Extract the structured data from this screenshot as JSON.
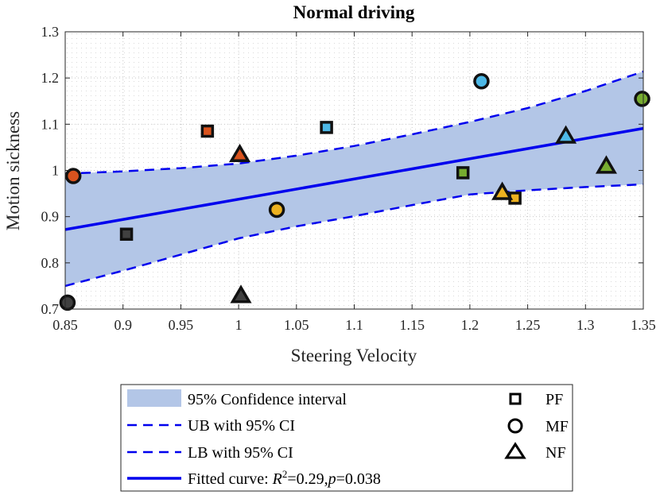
{
  "chart_data": {
    "type": "scatter",
    "title": "Normal driving",
    "xlabel": "Steering Velocity",
    "ylabel": "Motion sickness",
    "xlim": [
      0.85,
      1.35
    ],
    "ylim": [
      0.7,
      1.3
    ],
    "xticks": [
      "0.85",
      "0.9",
      "0.95",
      "1",
      "1.05",
      "1.1",
      "1.15",
      "1.2",
      "1.25",
      "1.3",
      "1.35"
    ],
    "yticks": [
      "0.7",
      "0.8",
      "0.9",
      "1",
      "1.1",
      "1.2",
      "1.3"
    ],
    "grid": true,
    "colors": {
      "band": "#b3c6e7",
      "line": "#0000ee",
      "marker_edge": "#111111"
    },
    "points": [
      {
        "group": "PF",
        "x": 0.903,
        "y": 0.862,
        "color": "#404040"
      },
      {
        "group": "PF",
        "x": 0.973,
        "y": 1.085,
        "color": "#d9531e"
      },
      {
        "group": "PF",
        "x": 1.076,
        "y": 1.093,
        "color": "#4db8e6"
      },
      {
        "group": "PF",
        "x": 1.194,
        "y": 0.995,
        "color": "#77ac30"
      },
      {
        "group": "PF",
        "x": 1.239,
        "y": 0.94,
        "color": "#edb120"
      },
      {
        "group": "MF",
        "x": 0.852,
        "y": 0.714,
        "color": "#404040"
      },
      {
        "group": "MF",
        "x": 0.857,
        "y": 0.988,
        "color": "#d9531e"
      },
      {
        "group": "MF",
        "x": 1.033,
        "y": 0.915,
        "color": "#edb120"
      },
      {
        "group": "MF",
        "x": 1.21,
        "y": 1.193,
        "color": "#4db8e6"
      },
      {
        "group": "MF",
        "x": 1.349,
        "y": 1.155,
        "color": "#77ac30"
      },
      {
        "group": "NF",
        "x": 1.001,
        "y": 1.033,
        "color": "#d9531e"
      },
      {
        "group": "NF",
        "x": 1.002,
        "y": 0.728,
        "color": "#404040"
      },
      {
        "group": "NF",
        "x": 1.228,
        "y": 0.951,
        "color": "#edb120"
      },
      {
        "group": "NF",
        "x": 1.283,
        "y": 1.073,
        "color": "#4db8e6"
      },
      {
        "group": "NF",
        "x": 1.318,
        "y": 1.008,
        "color": "#77ac30"
      }
    ],
    "fitted_curve": {
      "x": [
        0.85,
        1.35
      ],
      "y": [
        0.872,
        1.091
      ]
    },
    "upper_bound": {
      "x": [
        0.85,
        0.9,
        0.95,
        1.0,
        1.05,
        1.1,
        1.15,
        1.2,
        1.25,
        1.3,
        1.35
      ],
      "y": [
        0.993,
        0.998,
        1.005,
        1.015,
        1.032,
        1.053,
        1.078,
        1.105,
        1.135,
        1.172,
        1.214
      ]
    },
    "lower_bound": {
      "x": [
        0.85,
        0.9,
        0.95,
        1.0,
        1.05,
        1.1,
        1.15,
        1.2,
        1.25,
        1.3,
        1.35
      ],
      "y": [
        0.75,
        0.783,
        0.818,
        0.853,
        0.879,
        0.901,
        0.925,
        0.948,
        0.957,
        0.964,
        0.97
      ]
    },
    "legend": {
      "placement": "bottom",
      "ci_label": "95% Confidence interval",
      "ub_label": "UB with 95% CI",
      "lb_label": "LB with 95% CI",
      "fit_label": "Fitted curve: ",
      "fit_stats": "=0.29,",
      "fit_r": "R",
      "fit_r_exp": "2",
      "fit_p": "p",
      "fit_p_value": "=0.038",
      "groups": [
        "PF",
        "MF",
        "NF"
      ]
    }
  }
}
